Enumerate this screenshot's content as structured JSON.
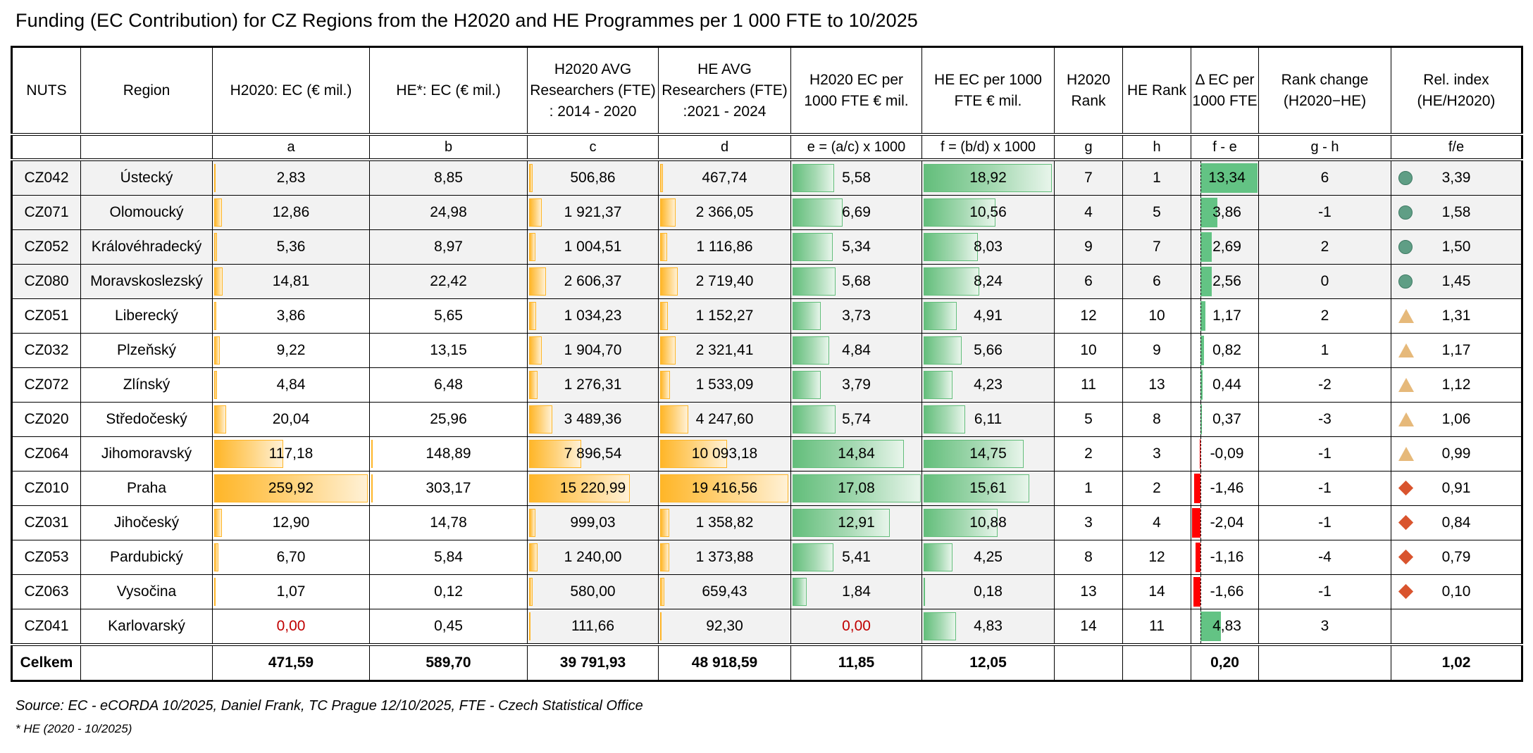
{
  "title": "Funding (EC Contribution) for CZ Regions from the H2020 and HE Programmes per 1 000 FTE to 10/2025",
  "headers": [
    "NUTS",
    "Region",
    "H2020: EC (€ mil.)",
    "HE*: EC (€ mil.)",
    "H2020 AVG Researchers (FTE) : 2014 - 2020",
    "HE AVG Researchers (FTE) :2021 - 2024",
    "H2020 EC per 1000 FTE € mil.",
    "HE EC per 1000 FTE € mil.",
    "H2020 Rank",
    "HE Rank",
    "Δ EC per 1000 FTE",
    "Rank change (H2020−HE)",
    "Rel. index (HE/H2020)"
  ],
  "subheaders": [
    "",
    "",
    "a",
    "b",
    "c",
    "d",
    "e = (a/c) x 1000",
    "f = (b/d) x 1000",
    "g",
    "h",
    "f - e",
    "g - h",
    "f/e"
  ],
  "rows": [
    {
      "nuts": "CZ042",
      "region": "Ústecký",
      "a": "2,83",
      "b": "8,85",
      "c": "506,86",
      "d": "467,74",
      "e": "5,58",
      "f": "18,92",
      "g": "7",
      "h": "1",
      "delta": "13,34",
      "rank_change": "6",
      "rel": "3,39",
      "marker": "circle",
      "shade": true
    },
    {
      "nuts": "CZ071",
      "region": "Olomoucký",
      "a": "12,86",
      "b": "24,98",
      "c": "1 921,37",
      "d": "2 366,05",
      "e": "6,69",
      "f": "10,56",
      "g": "4",
      "h": "5",
      "delta": "3,86",
      "rank_change": "-1",
      "rel": "1,58",
      "marker": "circle",
      "shade": true
    },
    {
      "nuts": "CZ052",
      "region": "Královéhradecký",
      "a": "5,36",
      "b": "8,97",
      "c": "1 004,51",
      "d": "1 116,86",
      "e": "5,34",
      "f": "8,03",
      "g": "9",
      "h": "7",
      "delta": "2,69",
      "rank_change": "2",
      "rel": "1,50",
      "marker": "circle",
      "shade": true
    },
    {
      "nuts": "CZ080",
      "region": "Moravskoslezský",
      "a": "14,81",
      "b": "22,42",
      "c": "2 606,37",
      "d": "2 719,40",
      "e": "5,68",
      "f": "8,24",
      "g": "6",
      "h": "6",
      "delta": "2,56",
      "rank_change": "0",
      "rel": "1,45",
      "marker": "circle",
      "shade": true
    },
    {
      "nuts": "CZ051",
      "region": "Liberecký",
      "a": "3,86",
      "b": "5,65",
      "c": "1 034,23",
      "d": "1 152,27",
      "e": "3,73",
      "f": "4,91",
      "g": "12",
      "h": "10",
      "delta": "1,17",
      "rank_change": "2",
      "rel": "1,31",
      "marker": "triangle",
      "shade": false
    },
    {
      "nuts": "CZ032",
      "region": "Plzeňský",
      "a": "9,22",
      "b": "13,15",
      "c": "1 904,70",
      "d": "2 321,41",
      "e": "4,84",
      "f": "5,66",
      "g": "10",
      "h": "9",
      "delta": "0,82",
      "rank_change": "1",
      "rel": "1,17",
      "marker": "triangle",
      "shade": false
    },
    {
      "nuts": "CZ072",
      "region": "Zlínský",
      "a": "4,84",
      "b": "6,48",
      "c": "1 276,31",
      "d": "1 533,09",
      "e": "3,79",
      "f": "4,23",
      "g": "11",
      "h": "13",
      "delta": "0,44",
      "rank_change": "-2",
      "rel": "1,12",
      "marker": "triangle",
      "shade": false
    },
    {
      "nuts": "CZ020",
      "region": "Středočeský",
      "a": "20,04",
      "b": "25,96",
      "c": "3 489,36",
      "d": "4 247,60",
      "e": "5,74",
      "f": "6,11",
      "g": "5",
      "h": "8",
      "delta": "0,37",
      "rank_change": "-3",
      "rel": "1,06",
      "marker": "triangle",
      "shade": false
    },
    {
      "nuts": "CZ064",
      "region": "Jihomoravský",
      "a": "117,18",
      "b": "148,89",
      "c": "7 896,54",
      "d": "10 093,18",
      "e": "14,84",
      "f": "14,75",
      "g": "2",
      "h": "3",
      "delta": "-0,09",
      "rank_change": "-1",
      "rel": "0,99",
      "marker": "triangle",
      "shade": false
    },
    {
      "nuts": "CZ010",
      "region": "Praha",
      "a": "259,92",
      "b": "303,17",
      "c": "15 220,99",
      "d": "19 416,56",
      "e": "17,08",
      "f": "15,61",
      "g": "1",
      "h": "2",
      "delta": "-1,46",
      "rank_change": "-1",
      "rel": "0,91",
      "marker": "diamond",
      "shade": false
    },
    {
      "nuts": "CZ031",
      "region": "Jihočeský",
      "a": "12,90",
      "b": "14,78",
      "c": "999,03",
      "d": "1 358,82",
      "e": "12,91",
      "f": "10,88",
      "g": "3",
      "h": "4",
      "delta": "-2,04",
      "rank_change": "-1",
      "rel": "0,84",
      "marker": "diamond",
      "shade": false
    },
    {
      "nuts": "CZ053",
      "region": "Pardubický",
      "a": "6,70",
      "b": "5,84",
      "c": "1 240,00",
      "d": "1 373,88",
      "e": "5,41",
      "f": "4,25",
      "g": "8",
      "h": "12",
      "delta": "-1,16",
      "rank_change": "-4",
      "rel": "0,79",
      "marker": "diamond",
      "shade": false
    },
    {
      "nuts": "CZ063",
      "region": "Vysočina",
      "a": "1,07",
      "b": "0,12",
      "c": "580,00",
      "d": "659,43",
      "e": "1,84",
      "f": "0,18",
      "g": "13",
      "h": "14",
      "delta": "-1,66",
      "rank_change": "-1",
      "rel": "0,10",
      "marker": "diamond",
      "shade": false
    },
    {
      "nuts": "CZ041",
      "region": "Karlovarský",
      "a": "0,00",
      "b": "0,45",
      "c": "111,66",
      "d": "92,30",
      "e": "0,00",
      "f": "4,83",
      "g": "14",
      "h": "11",
      "delta": "4,83",
      "rank_change": "3",
      "rel": "",
      "marker": "none",
      "shade": false
    }
  ],
  "total": {
    "label": "Celkem",
    "a": "471,59",
    "b": "589,70",
    "c": "39 791,93",
    "d": "48 918,59",
    "e": "11,85",
    "f": "12,05",
    "delta": "0,20",
    "rel": "1,02"
  },
  "colors": {
    "databar_orange": "#ffb628",
    "databar_green": "#63be7b",
    "delta_positive": "#63c384",
    "delta_negative": "#ff0000",
    "marker_circle": "#5f9e85",
    "marker_triangle": "#e6b97a",
    "marker_diamond": "#d9542e",
    "zero_value": "#c00000"
  },
  "source": "Source: EC - eCORDA 10/2025, Daniel Frank, TC Prague 12/10/2025, FTE - Czech Statistical Office",
  "footnote": "* HE (2020 - 10/2025)"
}
